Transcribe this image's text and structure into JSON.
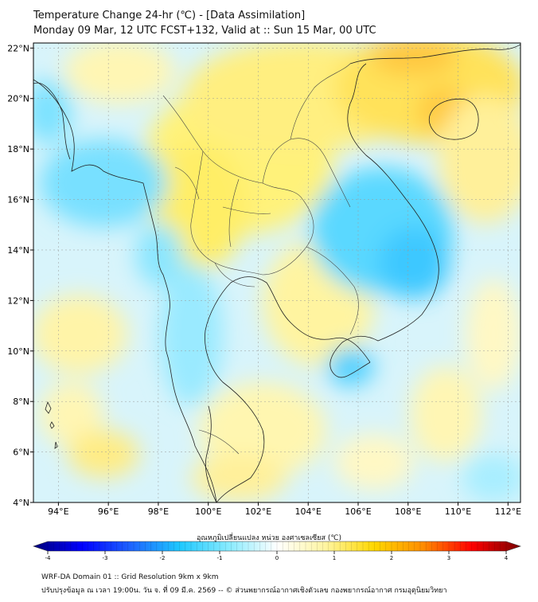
{
  "header": {
    "title": "Temperature Change 24-hr (℃) - [Data Assimilation]",
    "subtitle": "Monday 09 Mar, 12 UTC FCST+132, Valid at :: Sun 15 Mar, 00 UTC"
  },
  "map": {
    "lon_ticks": [
      "94°E",
      "96°E",
      "98°E",
      "100°E",
      "102°E",
      "104°E",
      "106°E",
      "108°E",
      "110°E",
      "112°E"
    ],
    "lat_ticks": [
      "4°N",
      "6°N",
      "8°N",
      "10°N",
      "12°N",
      "14°N",
      "16°N",
      "18°N",
      "20°N",
      "22°N"
    ],
    "lon_range": [
      93,
      112.5
    ],
    "lat_range": [
      4,
      22.2
    ]
  },
  "colorbar": {
    "label": "อุณหภูมิเปลี่ยนแปลง หน่วย องศาเซลเซียส (℃)",
    "ticks": [
      "-4",
      "-3",
      "-2",
      "-1",
      "0",
      "1",
      "2",
      "3",
      "4"
    ],
    "range": [
      -4,
      4
    ],
    "stops": [
      "#00007a",
      "#0000ff",
      "#1e64ff",
      "#1ec8ff",
      "#87ebff",
      "#ffffff",
      "#fff5a0",
      "#ffd700",
      "#ff8c00",
      "#ff0000",
      "#7a0000"
    ]
  },
  "footer": {
    "line1": "WRF-DA Domain 01 :: Grid Resolution 9km x 9km",
    "line2": "ปรับปรุงข้อมูล ณ เวลา 19:00น. วัน จ. ที่ 09 มี.ค. 2569 -- © ส่วนพยากรณ์อากาศเชิงตัวเลข กองพยากรณ์อากาศ กรมอุตุนิยมวิทยา"
  }
}
